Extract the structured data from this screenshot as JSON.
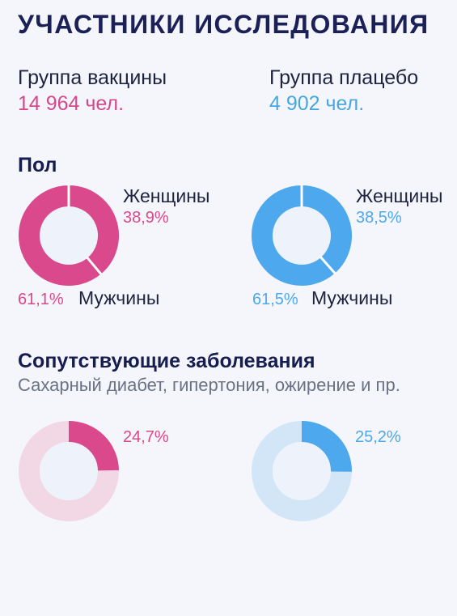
{
  "title": "УЧАСТНИКИ ИССЛЕДОВАНИЯ",
  "groups": [
    {
      "name": "Группа вакцины",
      "count": "14 964 чел.",
      "color": "#d6488b"
    },
    {
      "name": "Группа плацебо",
      "count": "4 902 чел.",
      "color": "#47a7df"
    }
  ],
  "sections": {
    "sex": {
      "heading": "Пол"
    },
    "comorbidity": {
      "heading": "Сопутствующие заболевания",
      "subtitle": "Сахарный диабет, гипертония, ожирение и пр."
    }
  },
  "chart_data": [
    {
      "type": "pie",
      "style": "donut",
      "color": "#d9498b",
      "slices": [
        {
          "label": "Женщины",
          "value": 38.9,
          "value_label": "38,9%"
        },
        {
          "label": "Мужчины",
          "value": 61.1,
          "value_label": "61,1%"
        }
      ]
    },
    {
      "type": "pie",
      "style": "donut",
      "color": "#4da8ee",
      "slices": [
        {
          "label": "Женщины",
          "value": 38.5,
          "value_label": "38,5%"
        },
        {
          "label": "Мужчины",
          "value": 61.5,
          "value_label": "61,5%"
        }
      ]
    },
    {
      "type": "pie",
      "style": "donut",
      "color": "#d9498b",
      "track_color": "#f2d8e5",
      "slices": [
        {
          "value": 24.7,
          "value_label": "24,7%"
        }
      ]
    },
    {
      "type": "pie",
      "style": "donut",
      "color": "#4da8ee",
      "track_color": "#d3e6f8",
      "slices": [
        {
          "value": 25.2,
          "value_label": "25,2%"
        }
      ]
    }
  ]
}
